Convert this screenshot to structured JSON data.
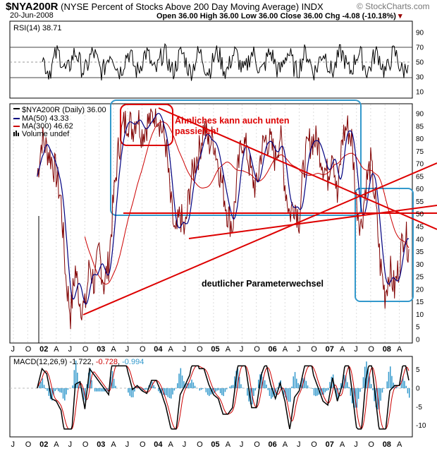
{
  "header": {
    "symbol": "$NYA200R",
    "description": "(NYSE Percent of Stocks Above 200 Day Moving Average) INDX",
    "date": "20-Jun-2008",
    "ohlc": "Open 36.00  High 36.00  Low 36.00  Close 36.00  Chg -4.08 (-10.18%)",
    "brand": "© StockCharts.com"
  },
  "rsi_panel": {
    "label": "RSI(14) 38.71",
    "ticks": [
      "90",
      "70",
      "50",
      "30",
      "10"
    ]
  },
  "main_panel": {
    "legend": [
      "$NYA200R (Daily) 36.00",
      "MA(50) 43.33",
      "MA(300) 46.62",
      "Volume undef"
    ],
    "ticks": [
      "90",
      "85",
      "80",
      "75",
      "70",
      "65",
      "60",
      "55",
      "50",
      "45",
      "40",
      "35",
      "30",
      "25",
      "20",
      "15",
      "10",
      "5",
      "0"
    ],
    "annotation_1": "Ähnliches kann auch unten",
    "annotation_2": "passieren!",
    "annotation_3": "deutlicher Parameterwechsel"
  },
  "macd_panel": {
    "label_prefix": "MACD(12,26,9)",
    "v1": "-1.722",
    "v2": "-0.728",
    "v3": "-0.994",
    "ticks": [
      "5",
      "0",
      "-5",
      "-10"
    ]
  },
  "x_axis_labels": [
    "J",
    "O",
    "02",
    "A",
    "J",
    "O",
    "03",
    "A",
    "J",
    "O",
    "04",
    "A",
    "J",
    "O",
    "05",
    "A",
    "J",
    "O",
    "06",
    "A",
    "J",
    "O",
    "07",
    "A",
    "J",
    "O",
    "08",
    "A"
  ],
  "colors": {
    "price": "#800000",
    "ma50": "#000080",
    "ma300": "#cc0000",
    "trend": "#dd0000",
    "box": "#3399cc"
  },
  "chart_data": {
    "type": "line",
    "title": "$NYA200R (NYSE Percent of Stocks Above 200 Day Moving Average) INDX",
    "x_range": [
      "2001-07",
      "2008-06"
    ],
    "ylim": [
      0,
      95
    ],
    "series": [
      {
        "name": "$NYA200R (Daily)",
        "x": [
          "2001-12",
          "2002-01",
          "2002-03",
          "2002-04",
          "2002-05",
          "2002-06",
          "2002-07",
          "2002-08",
          "2002-09",
          "2002-10",
          "2002-11",
          "2002-12",
          "2003-01",
          "2003-02",
          "2003-03",
          "2003-04",
          "2003-05",
          "2003-06",
          "2003-07",
          "2003-08",
          "2003-09",
          "2003-10",
          "2003-11",
          "2003-12",
          "2004-01",
          "2004-02",
          "2004-03",
          "2004-04",
          "2004-05",
          "2004-06",
          "2004-07",
          "2004-08",
          "2004-09",
          "2004-10",
          "2004-11",
          "2004-12",
          "2005-01",
          "2005-02",
          "2005-03",
          "2005-04",
          "2005-05",
          "2005-06",
          "2005-07",
          "2005-08",
          "2005-09",
          "2005-10",
          "2005-11",
          "2005-12",
          "2006-01",
          "2006-02",
          "2006-03",
          "2006-04",
          "2006-05",
          "2006-06",
          "2006-07",
          "2006-08",
          "2006-09",
          "2006-10",
          "2006-11",
          "2006-12",
          "2007-01",
          "2007-02",
          "2007-03",
          "2007-04",
          "2007-05",
          "2007-06",
          "2007-07",
          "2007-08",
          "2007-09",
          "2007-10",
          "2007-11",
          "2007-12",
          "2008-01",
          "2008-02",
          "2008-03",
          "2008-04",
          "2008-05",
          "2008-06"
        ],
        "values": [
          65,
          80,
          72,
          66,
          55,
          25,
          10,
          28,
          15,
          12,
          30,
          22,
          35,
          22,
          30,
          55,
          75,
          85,
          88,
          84,
          90,
          82,
          86,
          88,
          92,
          85,
          78,
          55,
          40,
          50,
          42,
          60,
          70,
          75,
          85,
          78,
          80,
          70,
          60,
          50,
          45,
          65,
          80,
          75,
          65,
          60,
          75,
          80,
          78,
          72,
          82,
          62,
          50,
          55,
          48,
          70,
          78,
          80,
          78,
          70,
          65,
          78,
          55,
          80,
          85,
          80,
          55,
          45,
          62,
          70,
          55,
          30,
          18,
          28,
          20,
          30,
          44,
          36
        ]
      },
      {
        "name": "MA(50)",
        "values": [
          43.33
        ]
      },
      {
        "name": "MA(300)",
        "values": [
          46.62
        ]
      }
    ],
    "rsi": {
      "name": "RSI(14)",
      "last": 38.71,
      "ylim": [
        0,
        100
      ],
      "levels": [
        30,
        70
      ]
    },
    "macd": {
      "name": "MACD(12,26,9)",
      "values": [
        -1.722,
        -0.728,
        -0.994
      ],
      "ylim": [
        -12,
        7
      ]
    }
  }
}
